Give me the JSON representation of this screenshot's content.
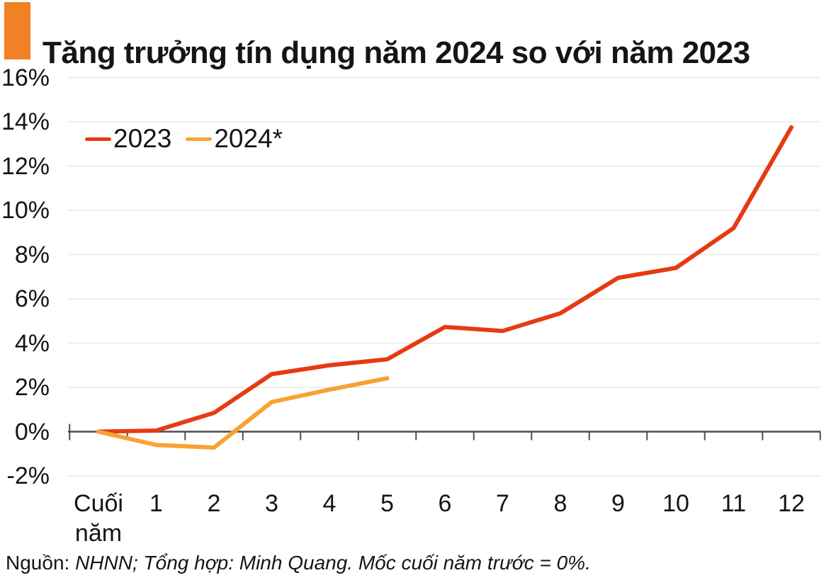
{
  "title": "Tăng trưởng tín dụng năm 2024 so với năm 2023",
  "footer": {
    "source_label": "Nguồn:",
    "source_text": "NHNN; Tổng hợp: Minh Quang. Mốc cuối năm trước = 0%."
  },
  "colors": {
    "accent_square": "#F08124",
    "series_2023": "#E63B12",
    "series_2024": "#F8A233",
    "axis": "#4D4D4D",
    "gridline": "#E8E8E8",
    "text": "#151515"
  },
  "chart_data": {
    "type": "line",
    "title": "Tăng trưởng tín dụng năm 2024 so với năm 2023",
    "categories": [
      "Cuối năm",
      "1",
      "2",
      "3",
      "4",
      "5",
      "6",
      "7",
      "8",
      "9",
      "10",
      "11",
      "12"
    ],
    "series": [
      {
        "name": "2023",
        "color": "#E63B12",
        "values": [
          0,
          0.05,
          0.85,
          2.6,
          3.0,
          3.27,
          4.73,
          4.55,
          5.35,
          6.95,
          7.4,
          9.2,
          13.75
        ]
      },
      {
        "name": "2024*",
        "color": "#F8A233",
        "values": [
          0,
          -0.6,
          -0.72,
          1.34,
          1.9,
          2.41
        ]
      }
    ],
    "ylim": [
      -2,
      16
    ],
    "ytick_values": [
      16,
      14,
      12,
      10,
      8,
      6,
      4,
      2,
      0,
      -2
    ],
    "ytick_labels": [
      "16%",
      "14%",
      "12%",
      "10%",
      "8%",
      "6%",
      "4%",
      "2%",
      "0%",
      "-2%"
    ],
    "grid": true,
    "legend_position": "inside-top-left",
    "xlabel": "",
    "ylabel": ""
  }
}
